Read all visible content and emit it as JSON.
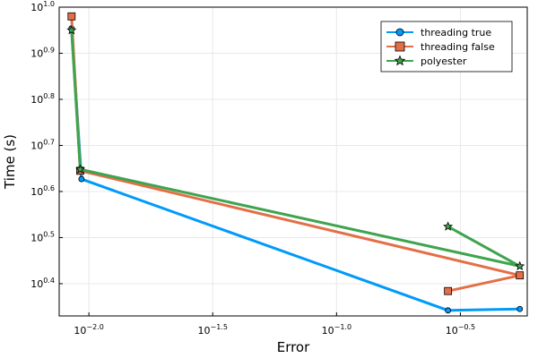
{
  "chart_data": {
    "type": "line",
    "title": "",
    "xlabel": "Error",
    "ylabel": "Time (s)",
    "x_scale": "log10",
    "y_scale": "log10",
    "xlim_log10": [
      -2.12,
      -0.23
    ],
    "ylim_log10": [
      0.33,
      1.0
    ],
    "grid": true,
    "legend_position": "top-right",
    "x_ticks": [
      {
        "base": "10",
        "exp": "−2.0",
        "value": -2.0
      },
      {
        "base": "10",
        "exp": "−1.5",
        "value": -1.5
      },
      {
        "base": "10",
        "exp": "−1.0",
        "value": -1.0
      },
      {
        "base": "10",
        "exp": "−0.5",
        "value": -0.5
      }
    ],
    "y_ticks": [
      {
        "base": "10",
        "exp": "0.4",
        "value": 0.4
      },
      {
        "base": "10",
        "exp": "0.5",
        "value": 0.5
      },
      {
        "base": "10",
        "exp": "0.6",
        "value": 0.6
      },
      {
        "base": "10",
        "exp": "0.7",
        "value": 0.7
      },
      {
        "base": "10",
        "exp": "0.8",
        "value": 0.8
      },
      {
        "base": "10",
        "exp": "0.9",
        "value": 0.9
      },
      {
        "base": "10",
        "exp": "1.0",
        "value": 1.0
      }
    ],
    "series": [
      {
        "name": "threading true",
        "color": "#009AFA",
        "marker": "circle",
        "points_log10": [
          {
            "x": -2.07,
            "y": 0.954
          },
          {
            "x": -2.03,
            "y": 0.627
          },
          {
            "x": -0.55,
            "y": 0.342
          },
          {
            "x": -0.26,
            "y": 0.345
          }
        ]
      },
      {
        "name": "threading false",
        "color": "#E36F47",
        "marker": "square",
        "points_log10": [
          {
            "x": -2.07,
            "y": 0.98
          },
          {
            "x": -2.035,
            "y": 0.645
          },
          {
            "x": -0.26,
            "y": 0.418
          },
          {
            "x": -0.55,
            "y": 0.384
          }
        ]
      },
      {
        "name": "polyester",
        "color": "#3EA44E",
        "marker": "star",
        "points_log10": [
          {
            "x": -2.07,
            "y": 0.95
          },
          {
            "x": -2.035,
            "y": 0.648
          },
          {
            "x": -0.26,
            "y": 0.438
          },
          {
            "x": -0.55,
            "y": 0.524
          }
        ]
      }
    ]
  }
}
